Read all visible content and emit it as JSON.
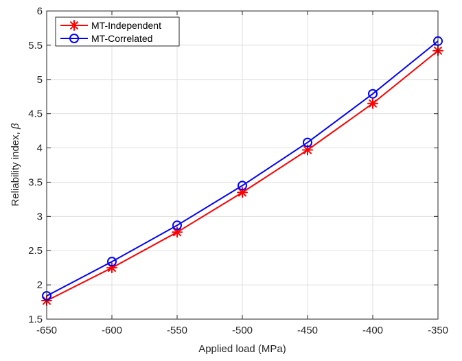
{
  "chart_data": {
    "type": "line",
    "title": "",
    "xlabel": "Applied load (MPa)",
    "ylabel_text": "Reliability index, ",
    "ylabel_symbol": "β",
    "x": [
      -650,
      -600,
      -550,
      -500,
      -450,
      -400,
      -350
    ],
    "xlim": [
      -650,
      -350
    ],
    "ylim": [
      1.5,
      6
    ],
    "xticks": [
      "-650",
      "-600",
      "-550",
      "-500",
      "-450",
      "-400",
      "-350"
    ],
    "yticks": [
      "1.5",
      "2",
      "2.5",
      "3",
      "3.5",
      "4",
      "4.5",
      "5",
      "5.5",
      "6"
    ],
    "grid": true,
    "legend_position": "top-left",
    "series": [
      {
        "name": "MT-Independent",
        "color": "#ff0000",
        "marker": "asterisk",
        "values": [
          1.77,
          2.25,
          2.77,
          3.35,
          3.97,
          4.65,
          5.42
        ]
      },
      {
        "name": "MT-Correlated",
        "color": "#0000ff",
        "marker": "circle",
        "values": [
          1.84,
          2.34,
          2.87,
          3.45,
          4.08,
          4.79,
          5.56
        ]
      }
    ]
  }
}
